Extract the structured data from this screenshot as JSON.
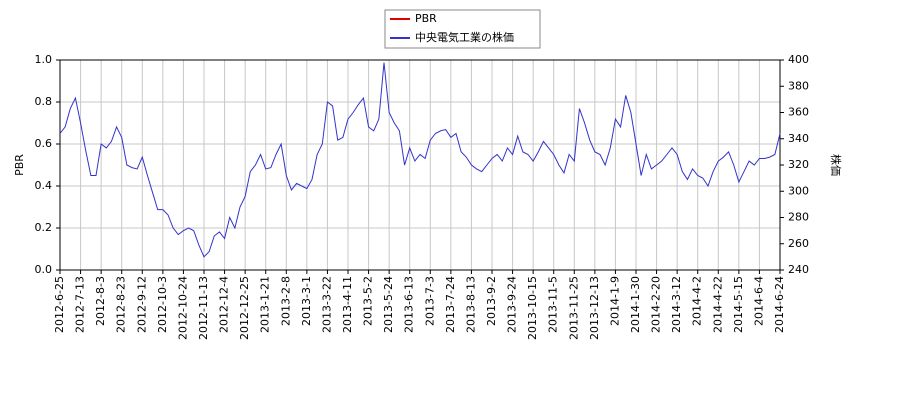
{
  "chart_data": {
    "type": "line",
    "ylabel": "PBR",
    "y2label": "株価",
    "ylim": [
      0,
      1
    ],
    "yticks": [
      {
        "value": 0,
        "label": "0.0"
      },
      0.2,
      0.4,
      0.6,
      0.8,
      {
        "value": 1,
        "label": "1.0"
      }
    ],
    "y2lim": [
      240,
      400
    ],
    "y2ticks": [
      240,
      260,
      280,
      300,
      320,
      340,
      360,
      380,
      400
    ],
    "grid": true,
    "legend": "top",
    "categories": [
      "2012-6-25",
      null,
      null,
      null,
      "2012-7-13",
      null,
      null,
      null,
      "2012-8-3",
      null,
      null,
      null,
      "2012-8-23",
      null,
      null,
      null,
      "2012-9-12",
      null,
      null,
      null,
      "2012-10-3",
      null,
      null,
      null,
      "2012-10-24",
      null,
      null,
      null,
      "2012-11-13",
      null,
      null,
      null,
      "2012-12-4",
      null,
      null,
      null,
      "2012-12-25",
      null,
      null,
      null,
      "2013-1-21",
      null,
      null,
      null,
      "2013-2-8",
      null,
      null,
      null,
      "2013-3-1",
      null,
      null,
      null,
      "2013-3-22",
      null,
      null,
      null,
      "2013-4-11",
      null,
      null,
      null,
      "2013-5-2",
      null,
      null,
      null,
      "2013-5-24",
      null,
      null,
      null,
      "2013-6-13",
      null,
      null,
      null,
      "2013-7-3",
      null,
      null,
      null,
      "2013-7-24",
      null,
      null,
      null,
      "2013-8-13",
      null,
      null,
      null,
      "2013-9-2",
      null,
      null,
      null,
      "2013-9-24",
      null,
      null,
      null,
      "2013-10-15",
      null,
      null,
      null,
      "2013-11-5",
      null,
      null,
      null,
      "2013-11-25",
      null,
      null,
      null,
      "2013-12-13",
      null,
      null,
      null,
      "2014-1-9",
      null,
      null,
      null,
      "2014-1-30",
      null,
      null,
      null,
      "2014-2-20",
      null,
      null,
      null,
      "2014-3-12",
      null,
      null,
      null,
      "2014-4-2",
      null,
      null,
      null,
      "2014-4-22",
      null,
      null,
      null,
      "2014-5-15",
      null,
      null,
      null,
      "2014-6-4",
      null,
      null,
      null,
      "2014-6-24"
    ],
    "series": [
      {
        "name": "PBR",
        "color": "#dd0000",
        "axis": "y",
        "values": [
          null,
          null,
          null,
          null,
          null,
          null,
          null,
          null,
          null,
          null,
          null,
          null,
          null,
          null,
          null,
          null,
          null,
          null,
          null,
          null,
          null,
          null,
          null,
          null,
          null,
          null,
          null,
          null,
          null,
          null,
          null,
          null,
          null,
          null,
          null,
          null,
          null,
          null,
          null,
          null,
          null,
          null,
          null,
          null,
          null,
          null,
          null,
          null,
          null,
          null,
          null,
          null,
          null,
          null,
          null,
          null,
          null,
          null,
          null,
          null,
          null,
          null,
          null,
          null,
          null,
          null,
          null,
          null,
          null,
          null,
          null,
          null,
          null,
          null,
          null,
          null,
          null,
          null,
          null,
          null,
          null,
          null,
          null,
          null,
          null,
          null,
          null,
          null,
          null,
          null,
          null,
          null,
          null,
          null,
          null,
          null,
          null,
          null,
          null,
          null,
          null,
          null,
          null,
          null,
          null,
          null,
          null,
          null,
          null,
          null,
          null,
          null,
          null,
          null,
          null,
          null,
          null,
          null,
          null,
          null,
          null,
          null,
          null,
          null,
          null,
          null,
          null,
          null,
          null,
          null,
          null,
          null,
          null,
          null,
          null,
          null,
          null,
          null,
          null,
          null,
          null
        ]
      },
      {
        "name": "中央電気工業の株価",
        "color": "#3333cc",
        "axis": "y2",
        "values": [
          344,
          349,
          363,
          371,
          352,
          331,
          312,
          312,
          336,
          333,
          338,
          349,
          341,
          320,
          318,
          317,
          326,
          312,
          299,
          286,
          286,
          282,
          272,
          267,
          270,
          272,
          270,
          259,
          250,
          254,
          266,
          269,
          264,
          280,
          272,
          288,
          296,
          315,
          320,
          328,
          317,
          318,
          328,
          336,
          312,
          301,
          306,
          304,
          302,
          309,
          328,
          336,
          368,
          365,
          339,
          341,
          355,
          360,
          366,
          371,
          349,
          346,
          355,
          398,
          360,
          352,
          346,
          320,
          333,
          323,
          328,
          325,
          339,
          344,
          346,
          347,
          341,
          344,
          330,
          326,
          320,
          317,
          315,
          320,
          325,
          328,
          323,
          333,
          328,
          342,
          330,
          328,
          323,
          330,
          338,
          333,
          328,
          320,
          314,
          328,
          323,
          363,
          352,
          339,
          330,
          328,
          320,
          333,
          355,
          349,
          373,
          360,
          336,
          312,
          328,
          317,
          320,
          323,
          328,
          333,
          328,
          315,
          309,
          317,
          312,
          310,
          304,
          315,
          323,
          326,
          330,
          320,
          307,
          315,
          323,
          320,
          325,
          325,
          326,
          328,
          344
        ]
      }
    ]
  }
}
